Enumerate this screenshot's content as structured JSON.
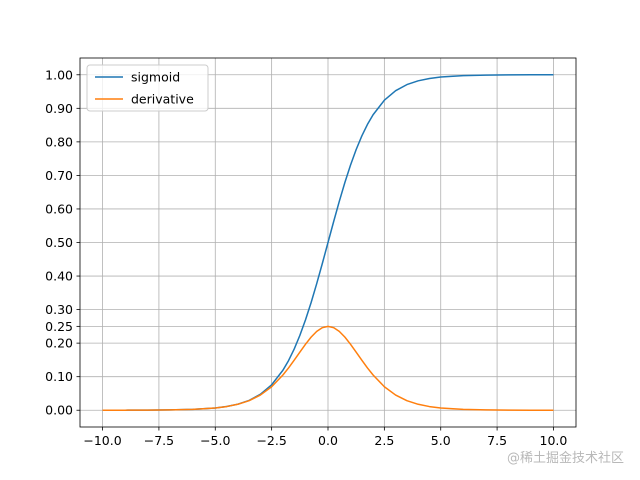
{
  "chart_data": {
    "type": "line",
    "title": "",
    "xlabel": "",
    "ylabel": "",
    "xlim": [
      -11.0,
      11.0
    ],
    "ylim": [
      -0.05,
      1.05
    ],
    "grid": true,
    "legend_position": "top-left",
    "x_ticks": [
      -10.0,
      -7.5,
      -5.0,
      -2.5,
      0.0,
      2.5,
      5.0,
      7.5,
      10.0
    ],
    "x_tick_labels": [
      "−10.0",
      "−7.5",
      "−5.0",
      "−2.5",
      "0.0",
      "2.5",
      "5.0",
      "7.5",
      "10.0"
    ],
    "y_ticks": [
      0.0,
      0.1,
      0.2,
      0.25,
      0.3,
      0.4,
      0.5,
      0.6,
      0.7,
      0.8,
      0.9,
      1.0
    ],
    "y_tick_labels": [
      "0.00",
      "0.10",
      "0.20",
      "0.25",
      "0.30",
      "0.40",
      "0.50",
      "0.60",
      "0.70",
      "0.80",
      "0.90",
      "1.00"
    ],
    "x": [
      -10,
      -9,
      -8,
      -7,
      -6,
      -5,
      -4.5,
      -4,
      -3.5,
      -3,
      -2.5,
      -2,
      -1.75,
      -1.5,
      -1.25,
      -1,
      -0.75,
      -0.5,
      -0.25,
      0,
      0.25,
      0.5,
      0.75,
      1,
      1.25,
      1.5,
      1.75,
      2,
      2.5,
      3,
      3.5,
      4,
      4.5,
      5,
      6,
      7,
      8,
      9,
      10
    ],
    "series": [
      {
        "name": "sigmoid",
        "color": "#1f77b4",
        "values": [
          0.0,
          0.0001,
          0.0003,
          0.0009,
          0.0025,
          0.0067,
          0.011,
          0.018,
          0.0293,
          0.0474,
          0.0759,
          0.1192,
          0.148,
          0.1824,
          0.2227,
          0.2689,
          0.3208,
          0.3775,
          0.4378,
          0.5,
          0.5622,
          0.6225,
          0.6792,
          0.7311,
          0.7773,
          0.8176,
          0.852,
          0.8808,
          0.9241,
          0.9526,
          0.9707,
          0.982,
          0.989,
          0.9933,
          0.9975,
          0.9991,
          0.9997,
          0.9999,
          1.0
        ]
      },
      {
        "name": "derivative",
        "color": "#ff7f0e",
        "values": [
          0.0,
          0.0001,
          0.0003,
          0.0009,
          0.0025,
          0.0066,
          0.0109,
          0.0177,
          0.0285,
          0.0452,
          0.0701,
          0.105,
          0.1261,
          0.1491,
          0.1731,
          0.1966,
          0.2179,
          0.235,
          0.2461,
          0.25,
          0.2461,
          0.235,
          0.2179,
          0.1966,
          0.1731,
          0.1491,
          0.1261,
          0.105,
          0.0701,
          0.0452,
          0.0285,
          0.0177,
          0.0109,
          0.0066,
          0.0025,
          0.0009,
          0.0003,
          0.0001,
          0.0
        ]
      }
    ]
  },
  "watermark": "@稀土掘金技术社区"
}
